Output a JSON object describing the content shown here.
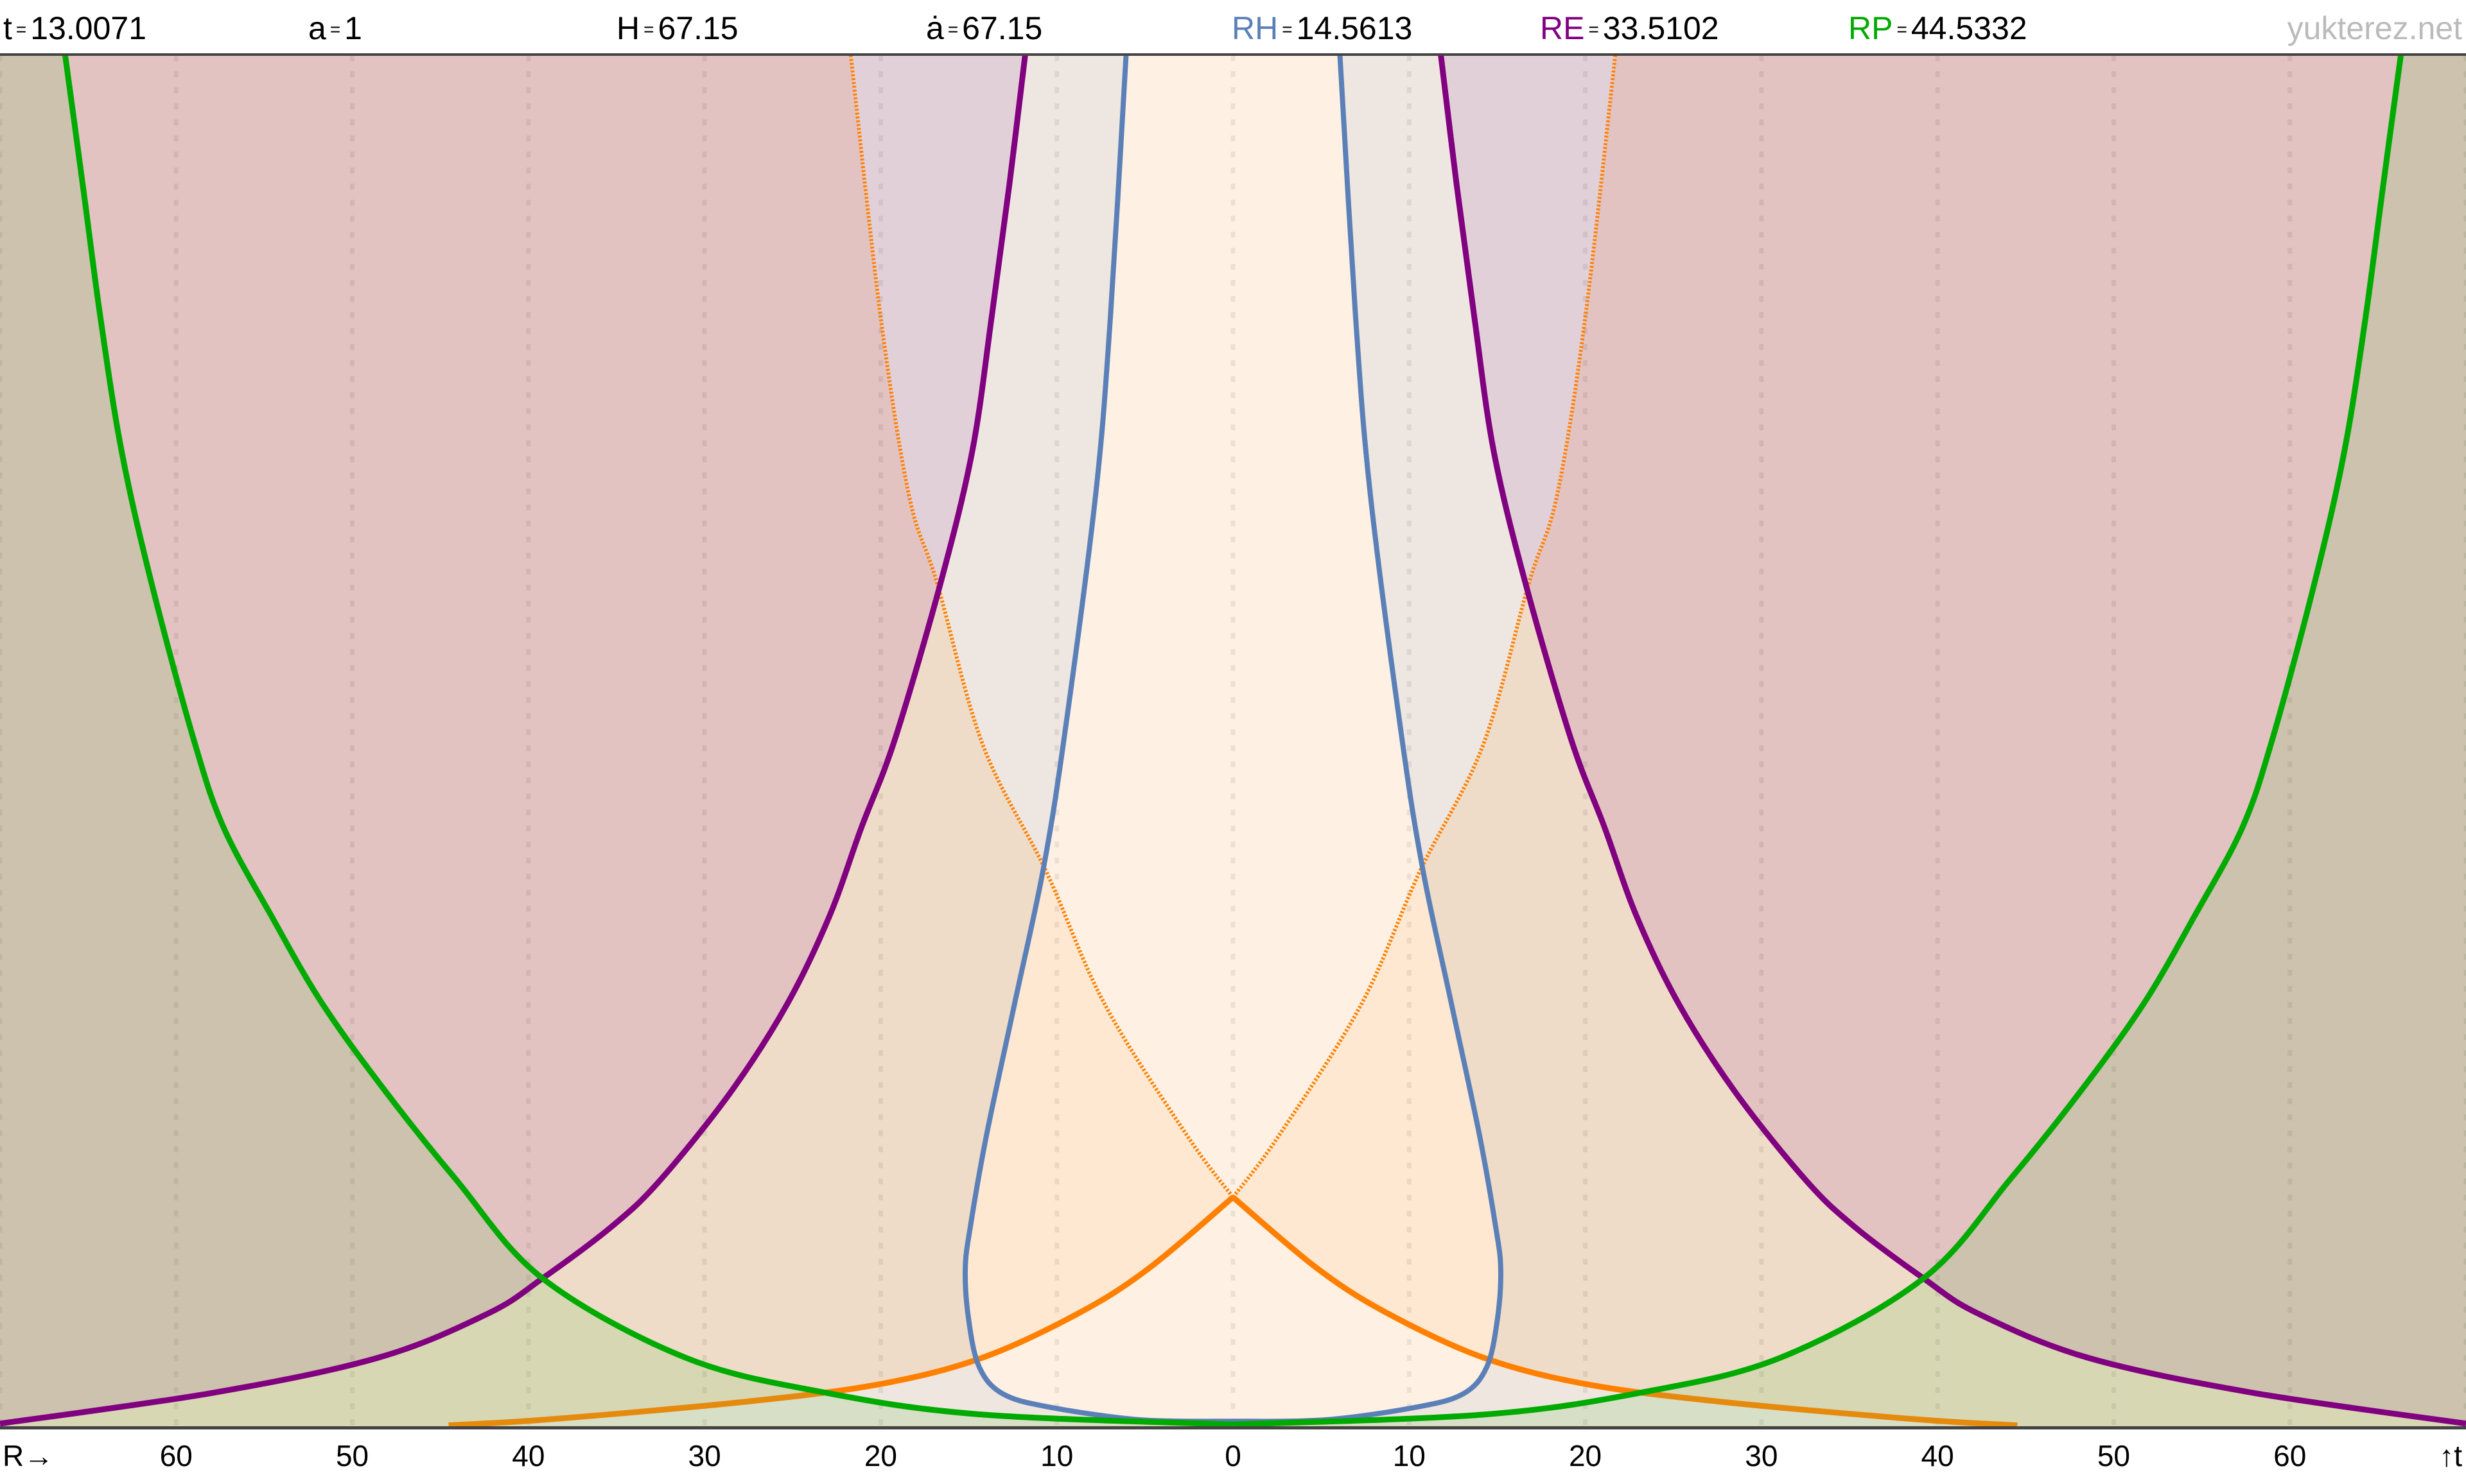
{
  "header": {
    "items": [
      {
        "label": "t",
        "value": "13.0071",
        "color": "#000000"
      },
      {
        "label": "a",
        "value": "1",
        "color": "#000000"
      },
      {
        "label": "H",
        "value": "67.15",
        "color": "#000000"
      },
      {
        "label": "ȧ",
        "value": "67.15",
        "color": "#000000"
      },
      {
        "label": "RH",
        "value": "14.5613",
        "color": "#5b80b8"
      },
      {
        "label": "RE",
        "value": "33.5102",
        "color": "#800080"
      },
      {
        "label": "RP",
        "value": "44.5332",
        "color": "#00aa00"
      }
    ],
    "separator": "=",
    "site": "yukterez.net"
  },
  "chart_data": {
    "type": "line",
    "xlabel": "R→",
    "ylabel": "↑t",
    "xlim": [
      -70,
      70
    ],
    "ylim": [
      0,
      77.87
    ],
    "x_ticks": [
      -60,
      -50,
      -40,
      -30,
      -20,
      -10,
      0,
      10,
      20,
      30,
      40,
      50,
      60
    ],
    "x_tick_labels": [
      "60",
      "50",
      "40",
      "30",
      "20",
      "10",
      "0",
      "10",
      "20",
      "30",
      "40",
      "50",
      "60"
    ],
    "grid": "vertical dotted every 10",
    "symmetric_about_R0": true,
    "curves": {
      "RH": {
        "color": "#5b80b8",
        "style": "solid",
        "points": [
          [
            -6.07,
            77.87
          ],
          [
            -6.96,
            63.0
          ],
          [
            -7.8,
            52.9
          ],
          [
            -9.6,
            39.0
          ],
          [
            -10.8,
            31.5
          ],
          [
            -12.4,
            24.0
          ],
          [
            -14.0,
            16.5
          ],
          [
            -14.9,
            11.4
          ],
          [
            -15.2,
            8.9
          ],
          [
            -15.0,
            6.0
          ],
          [
            -14.4,
            3.35
          ],
          [
            -13.1,
            1.86
          ],
          [
            -10.5,
            1.1
          ],
          [
            -5.3,
            0.37
          ],
          [
            0,
            0.28
          ]
        ]
      },
      "RE": {
        "color": "#800080",
        "style": "solid",
        "points": [
          [
            -11.8,
            77.87
          ],
          [
            -12.7,
            70.5
          ],
          [
            -13.7,
            63.0
          ],
          [
            -14.8,
            55.4
          ],
          [
            -16.6,
            47.9
          ],
          [
            -19.2,
            39.0
          ],
          [
            -21.1,
            34.0
          ],
          [
            -22.9,
            29.0
          ],
          [
            -25.3,
            24.0
          ],
          [
            -28.5,
            19.0
          ],
          [
            -32.5,
            14.0
          ],
          [
            -35.2,
            11.4
          ],
          [
            -39.2,
            8.4
          ],
          [
            -42.3,
            6.4
          ],
          [
            -48.5,
            3.9
          ],
          [
            -57.9,
            1.9
          ],
          [
            -70,
            0.15
          ]
        ]
      },
      "RP": {
        "color": "#00aa00",
        "style": "solid",
        "points": [
          [
            -66.3,
            77.87
          ],
          [
            -65.3,
            70.5
          ],
          [
            -64.3,
            63.0
          ],
          [
            -63.1,
            55.4
          ],
          [
            -61.4,
            47.9
          ],
          [
            -59.0,
            39.0
          ],
          [
            -57.3,
            34.0
          ],
          [
            -54.6,
            29.0
          ],
          [
            -51.7,
            24.0
          ],
          [
            -48.1,
            19.0
          ],
          [
            -44.1,
            14.0
          ],
          [
            -39.2,
            8.4
          ],
          [
            -31.1,
            3.9
          ],
          [
            -23.1,
            1.9
          ],
          [
            -14.2,
            0.66
          ],
          [
            0,
            0.1
          ]
        ]
      },
      "past_light_cone": {
        "color": "#ff8000",
        "style": "solid",
        "points": [
          [
            0,
            13.0071
          ],
          [
            -4.8,
            8.95
          ],
          [
            -8.8,
            6.4
          ],
          [
            -14.2,
            3.9
          ],
          [
            -20.0,
            2.4
          ],
          [
            -27.6,
            1.4
          ],
          [
            -38.7,
            0.4
          ],
          [
            -44.53,
            0.05
          ]
        ]
      },
      "future_light_cone": {
        "color": "#ff8000",
        "style": "dotted",
        "points": [
          [
            -21.7,
            77.87
          ],
          [
            -20.0,
            63.0
          ],
          [
            -18.4,
            52.9
          ],
          [
            -16.8,
            47.9
          ],
          [
            -14.2,
            38.7
          ],
          [
            -10.6,
            31.5
          ],
          [
            -7.3,
            24.0
          ],
          [
            -2.6,
            16.5
          ],
          [
            0,
            13.0071
          ]
        ]
      }
    },
    "region_colors": {
      "outside_event_horizon": "#e2c3c1",
      "inside_event_horizon": "#eedcc8",
      "future_cone_outside_eh": "#e2d0d8",
      "future_cone_inside_eh": "#eee6e0",
      "past_cone": "#efe6df",
      "hubble_sphere": "#fee8d2",
      "hubble_inside_cones": "#fef1e4",
      "outside_particle_horizon_tint": "rgba(100,190,80,0.17)"
    }
  }
}
